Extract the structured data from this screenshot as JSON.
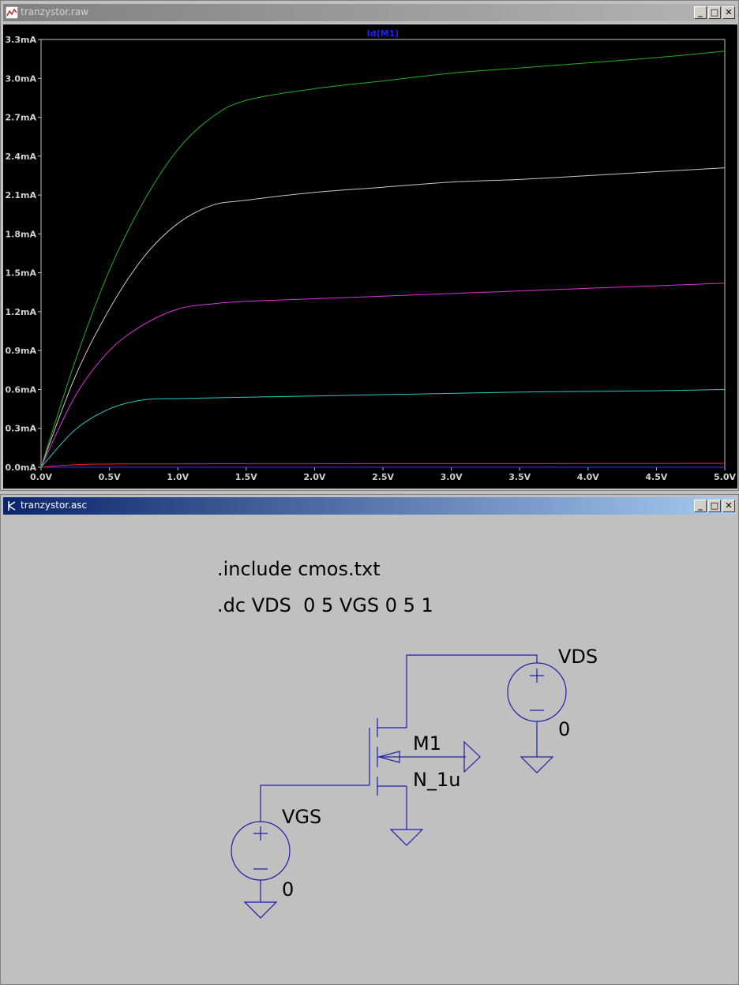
{
  "plot_window": {
    "title": "tranzystor.raw",
    "trace_label": "Id(M1)",
    "buttons": {
      "minimize": "_",
      "maximize": "□",
      "close": "✕"
    }
  },
  "schematic_window": {
    "title": "tranzystor.asc",
    "buttons": {
      "minimize": "_",
      "maximize": "□",
      "close": "✕"
    },
    "directives": [
      ".include cmos.txt",
      ".dc VDS  0 5 VGS 0 5 1"
    ],
    "components": {
      "vds": {
        "name": "VDS",
        "value": "0"
      },
      "vgs": {
        "name": "VGS",
        "value": "0"
      },
      "mosfet": {
        "name": "M1",
        "model": "N_1u"
      }
    },
    "wire_color": "#1c1caa"
  },
  "chart_data": {
    "type": "line",
    "title": "Id(M1)",
    "xlim": [
      0,
      5
    ],
    "ylim": [
      0,
      3.3
    ],
    "x_ticks": [
      "0.0V",
      "0.5V",
      "1.0V",
      "1.5V",
      "2.0V",
      "2.5V",
      "3.0V",
      "3.5V",
      "4.0V",
      "4.5V",
      "5.0V"
    ],
    "y_ticks": [
      "0.0mA",
      "0.3mA",
      "0.6mA",
      "0.9mA",
      "1.2mA",
      "1.5mA",
      "1.8mA",
      "2.1mA",
      "2.4mA",
      "2.7mA",
      "3.0mA",
      "3.3mA"
    ],
    "x": [
      0,
      0.25,
      0.5,
      0.75,
      1.0,
      1.25,
      1.5,
      2.0,
      2.5,
      3.0,
      3.5,
      4.0,
      4.5,
      5.0
    ],
    "series": [
      {
        "color": "#3333ff",
        "values": [
          0,
          0,
          0,
          0,
          0,
          0,
          0,
          0,
          0,
          0,
          0,
          0,
          0,
          0
        ]
      },
      {
        "color": "#ff2020",
        "values": [
          0,
          0.02,
          0.025,
          0.026,
          0.026,
          0.027,
          0.027,
          0.027,
          0.028,
          0.028,
          0.028,
          0.029,
          0.029,
          0.03
        ]
      },
      {
        "color": "#30c8c8",
        "values": [
          0,
          0.29,
          0.45,
          0.52,
          0.53,
          0.535,
          0.54,
          0.55,
          0.56,
          0.57,
          0.58,
          0.585,
          0.59,
          0.6
        ]
      },
      {
        "color": "#e030e0",
        "values": [
          0,
          0.55,
          0.9,
          1.1,
          1.22,
          1.26,
          1.28,
          1.3,
          1.32,
          1.34,
          1.36,
          1.38,
          1.4,
          1.42
        ]
      },
      {
        "color": "#c8c8c8",
        "values": [
          0,
          0.7,
          1.22,
          1.62,
          1.88,
          2.02,
          2.06,
          2.12,
          2.16,
          2.2,
          2.22,
          2.25,
          2.28,
          2.31
        ]
      },
      {
        "color": "#20b020",
        "values": [
          0,
          0.82,
          1.52,
          2.05,
          2.45,
          2.7,
          2.83,
          2.92,
          2.98,
          3.04,
          3.08,
          3.12,
          3.16,
          3.21
        ]
      }
    ],
    "grid": false
  }
}
